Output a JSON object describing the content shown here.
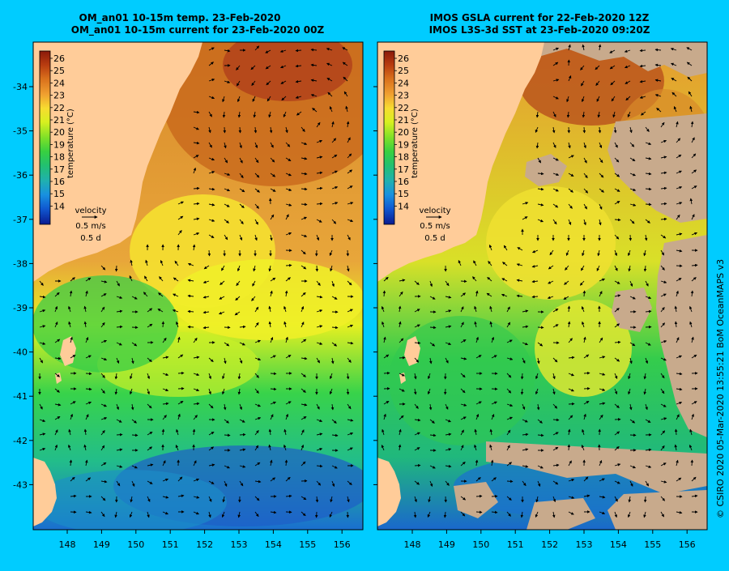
{
  "left": {
    "title_line1": "OM_an01 10-15m temp. 23-Feb-2020",
    "title_line2": "OM_an01 10-15m current for 23-Feb-2020 00Z",
    "colorbar": {
      "ticks": [
        "26",
        "25",
        "24",
        "23",
        "22",
        "21",
        "20",
        "19",
        "18",
        "17",
        "16",
        "15",
        "14"
      ],
      "unit_label": "temperature (°C)"
    },
    "velocity_legend": {
      "title": "velocity",
      "line1": "0.5 m/s",
      "line2": "0.5 d"
    }
  },
  "right": {
    "title_line1": "IMOS GSLA current for 22-Feb-2020 12Z",
    "title_line2": "IMOS L3S-3d SST at 23-Feb-2020 09:20Z",
    "colorbar": {
      "ticks": [
        "26",
        "25",
        "24",
        "23",
        "22",
        "21",
        "20",
        "19",
        "18",
        "17",
        "16",
        "15",
        "14"
      ],
      "unit_label": "temperature (°C)"
    },
    "velocity_legend": {
      "title": "velocity",
      "line1": "0.5 m/s",
      "line2": "0.5 d"
    }
  },
  "axes": {
    "lat_ticks": [
      "-34",
      "-35",
      "-36",
      "-37",
      "-38",
      "-39",
      "-40",
      "-41",
      "-42",
      "-43"
    ],
    "lon_ticks": [
      "148",
      "149",
      "150",
      "151",
      "152",
      "153",
      "154",
      "155",
      "156"
    ]
  },
  "credit": "© CSIRO 2020   05-Mar-2020 13:55:21 BoM OceanMAPS v3",
  "colors": {
    "background": "#00ccff",
    "land": "#ffcc99",
    "missing_data": "#c8aa8c"
  }
}
